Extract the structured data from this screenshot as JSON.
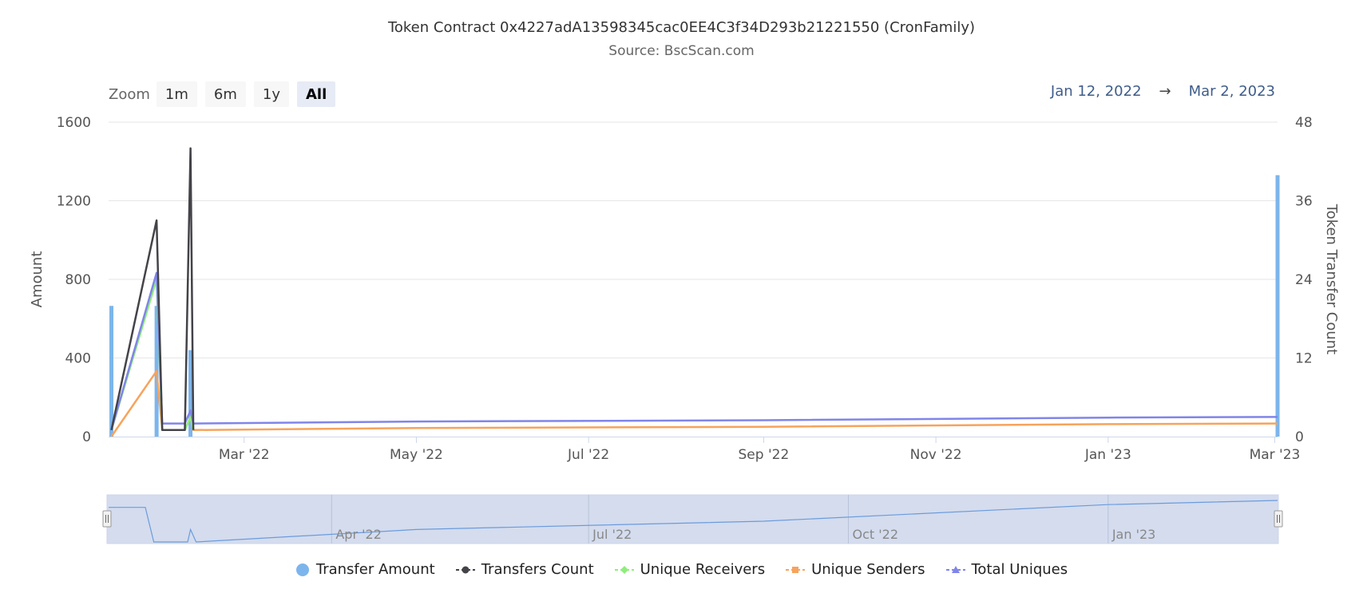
{
  "chart_data": {
    "type": "line",
    "title": "Token Contract 0x4227adA13598345cac0EE4C3f34D293b21221550 (CronFamily)",
    "subtitle": "Source: BscScan.com",
    "zoom": {
      "label": "Zoom",
      "buttons": [
        "1m",
        "6m",
        "1y",
        "All"
      ],
      "active": "All"
    },
    "range": {
      "from": "Jan 12, 2022",
      "arrow": "→",
      "to": "Mar 2, 2023"
    },
    "x_axis": {
      "range": [
        "2022-01-12",
        "2023-03-02"
      ],
      "tick_labels": [
        {
          "date": "2022-03-01",
          "label": "Mar '22"
        },
        {
          "date": "2022-05-01",
          "label": "May '22"
        },
        {
          "date": "2022-07-01",
          "label": "Jul '22"
        },
        {
          "date": "2022-09-01",
          "label": "Sep '22"
        },
        {
          "date": "2022-11-01",
          "label": "Nov '22"
        },
        {
          "date": "2023-01-01",
          "label": "Jan '23"
        },
        {
          "date": "2023-03-01",
          "label": "Mar '23"
        }
      ]
    },
    "y_left": {
      "label": "Amount",
      "ylim": [
        0,
        1600
      ],
      "ticks": [
        0,
        400,
        800,
        1200,
        1600
      ]
    },
    "y_right": {
      "label": "Token Transfer Count",
      "ylim": [
        0,
        48
      ],
      "ticks": [
        0,
        12,
        24,
        36,
        48
      ]
    },
    "grid": true,
    "legend_position": "bottom-center",
    "series": [
      {
        "name": "Transfer Amount",
        "kind": "column",
        "axis": "left",
        "color": "#7cb5ec",
        "points": [
          [
            "2022-01-13",
            665
          ],
          [
            "2022-01-29",
            665
          ],
          [
            "2022-02-10",
            440
          ],
          [
            "2023-03-02",
            1330
          ]
        ]
      },
      {
        "name": "Transfers Count",
        "kind": "line",
        "axis": "right",
        "color": "#434348",
        "points": [
          [
            "2022-01-13",
            1
          ],
          [
            "2022-01-29",
            33
          ],
          [
            "2022-01-31",
            1
          ],
          [
            "2022-02-08",
            1
          ],
          [
            "2022-02-10",
            44
          ],
          [
            "2022-02-11",
            1
          ]
        ]
      },
      {
        "name": "Unique Receivers",
        "kind": "line",
        "axis": "right",
        "color": "#90ed7d",
        "points": [
          [
            "2022-01-13",
            1
          ],
          [
            "2022-01-29",
            24
          ],
          [
            "2022-01-31",
            1
          ],
          [
            "2022-02-08",
            1
          ],
          [
            "2022-02-10",
            3
          ],
          [
            "2022-02-11",
            1
          ]
        ]
      },
      {
        "name": "Unique Senders",
        "kind": "line",
        "axis": "right",
        "color": "#f7a35c",
        "points": [
          [
            "2022-01-13",
            0
          ],
          [
            "2022-01-29",
            10
          ],
          [
            "2022-01-31",
            1
          ],
          [
            "2022-02-08",
            1
          ],
          [
            "2022-02-10",
            3
          ],
          [
            "2022-02-11",
            1
          ],
          [
            "2022-05-01",
            1.3
          ],
          [
            "2022-09-01",
            1.5
          ],
          [
            "2023-01-01",
            1.9
          ],
          [
            "2023-03-02",
            2
          ]
        ]
      },
      {
        "name": "Total Uniques",
        "kind": "line",
        "axis": "right",
        "color": "#8085e9",
        "points": [
          [
            "2022-01-13",
            1
          ],
          [
            "2022-01-29",
            25
          ],
          [
            "2022-01-31",
            2
          ],
          [
            "2022-02-08",
            2
          ],
          [
            "2022-02-10",
            4
          ],
          [
            "2022-02-11",
            2
          ],
          [
            "2022-05-01",
            2.3
          ],
          [
            "2022-09-01",
            2.5
          ],
          [
            "2023-01-01",
            2.9
          ],
          [
            "2023-03-02",
            3
          ]
        ]
      }
    ],
    "navigator": {
      "labels": [
        {
          "date": "2022-04-01",
          "label": "Apr '22"
        },
        {
          "date": "2022-07-01",
          "label": "Jul '22"
        },
        {
          "date": "2022-10-01",
          "label": "Oct '22"
        },
        {
          "date": "2023-01-01",
          "label": "Jan '23"
        }
      ],
      "line_color": "#6b9bdb",
      "fill_color": "#ccd6eb"
    }
  }
}
